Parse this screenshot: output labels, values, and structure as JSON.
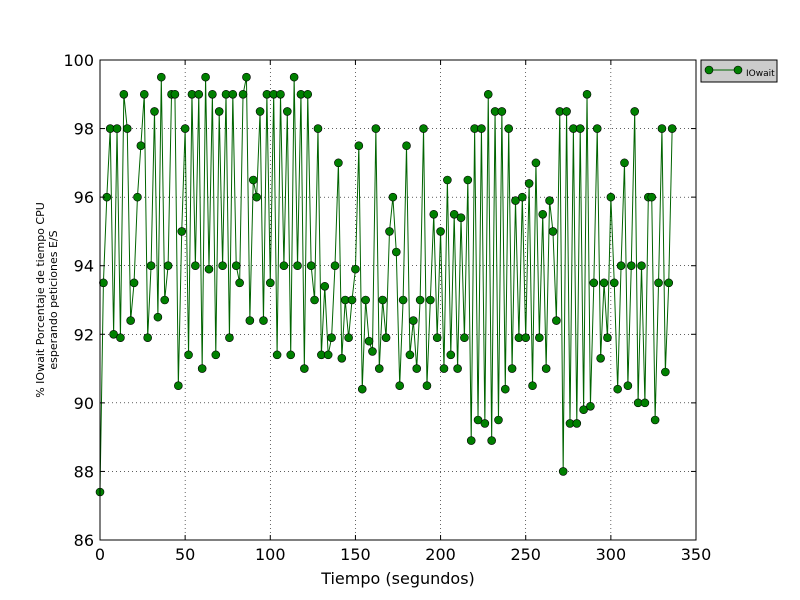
{
  "chart_data": {
    "type": "line",
    "title": "",
    "xlabel": "Tiempo (segundos)",
    "ylabel_lines": [
      "% IOwait Porcentaje de tiempo CPU",
      "esperando peticiones E/S"
    ],
    "xlim": [
      0,
      350
    ],
    "ylim": [
      86,
      100
    ],
    "x_ticks": [
      "0",
      "50",
      "100",
      "150",
      "200",
      "250",
      "300",
      "350"
    ],
    "y_ticks": [
      "86",
      "88",
      "90",
      "92",
      "94",
      "96",
      "98",
      "100"
    ],
    "grid": true,
    "legend": "outside-top-right",
    "series": [
      {
        "name": "IOwait",
        "color": "#006400",
        "marker_color": "#008000",
        "x": [
          0,
          2,
          4,
          6,
          8,
          10,
          12,
          14,
          16,
          18,
          20,
          22,
          24,
          26,
          28,
          30,
          32,
          34,
          36,
          38,
          40,
          42,
          44,
          46,
          48,
          50,
          52,
          54,
          56,
          58,
          60,
          62,
          64,
          66,
          68,
          70,
          72,
          74,
          76,
          78,
          80,
          82,
          84,
          86,
          88,
          90,
          92,
          94,
          96,
          98,
          100,
          102,
          104,
          106,
          108,
          110,
          112,
          114,
          116,
          118,
          120,
          122,
          124,
          126,
          128,
          130,
          132,
          134,
          136,
          138,
          140,
          142,
          144,
          146,
          148,
          150,
          152,
          154,
          156,
          158,
          160,
          162,
          164,
          166,
          168,
          170,
          172,
          174,
          176,
          178,
          180,
          182,
          184,
          186,
          188,
          190,
          192,
          194,
          196,
          198,
          200,
          202,
          204,
          206,
          208,
          210,
          212,
          214,
          216,
          218,
          220,
          222,
          224,
          226,
          228,
          230,
          232,
          234,
          236,
          238,
          240,
          242,
          244,
          246,
          248,
          250,
          252,
          254,
          256,
          258,
          260,
          262,
          264,
          266,
          268,
          270,
          272,
          274,
          276,
          278,
          280,
          282,
          284,
          286,
          288,
          290,
          292,
          294,
          296,
          298,
          300,
          302,
          304,
          306,
          308,
          310,
          312,
          314,
          316,
          318,
          320,
          322,
          324,
          326,
          328,
          330,
          332,
          334,
          336
        ],
        "y": [
          87.4,
          93.5,
          96.0,
          98.0,
          92.0,
          98.0,
          91.9,
          99.0,
          98.0,
          92.4,
          93.5,
          96.0,
          97.5,
          99.0,
          91.9,
          94.0,
          98.5,
          92.5,
          99.5,
          93.0,
          94.0,
          99.0,
          99.0,
          90.5,
          95.0,
          98.0,
          91.4,
          99.0,
          94.0,
          99.0,
          91.0,
          99.5,
          93.9,
          99.0,
          91.4,
          98.5,
          94.0,
          99.0,
          91.9,
          99.0,
          94.0,
          93.5,
          99.0,
          99.5,
          92.4,
          96.5,
          96.0,
          98.5,
          92.4,
          99.0,
          93.5,
          99.0,
          91.4,
          99.0,
          94.0,
          98.5,
          91.4,
          99.5,
          94.0,
          99.0,
          91.0,
          99.0,
          94.0,
          93.0,
          98.0,
          91.4,
          93.4,
          91.4,
          91.9,
          94.0,
          97.0,
          91.3,
          93.0,
          91.9,
          93.0,
          93.9,
          97.5,
          90.4,
          93.0,
          91.8,
          91.5,
          98.0,
          91.0,
          93.0,
          91.9,
          95.0,
          96.0,
          94.4,
          90.5,
          93.0,
          97.5,
          91.4,
          92.4,
          91.0,
          93.0,
          98.0,
          90.5,
          93.0,
          95.5,
          91.9,
          95.0,
          91.0,
          96.5,
          91.4,
          95.5,
          91.0,
          95.4,
          91.9,
          96.5,
          88.9,
          98.0,
          89.5,
          98.0,
          89.4,
          99.0,
          88.9,
          98.5,
          89.5,
          98.5,
          90.4,
          98.0,
          91.0,
          95.9,
          91.9,
          96.0,
          91.9,
          96.4,
          90.5,
          97.0,
          91.9,
          95.5,
          91.0,
          95.9,
          95.0,
          92.4,
          98.5,
          88.0,
          98.5,
          89.4,
          98.0,
          89.4,
          98.0,
          89.8,
          99.0,
          89.9,
          93.5,
          98.0,
          91.3,
          93.5,
          91.9,
          96.0,
          93.5,
          90.4,
          94.0,
          97.0,
          90.5,
          94.0,
          98.5,
          90.0,
          94.0,
          90.0,
          96.0,
          96.0,
          89.5,
          93.5,
          98.0,
          90.9,
          93.5,
          98.0
        ]
      }
    ]
  }
}
